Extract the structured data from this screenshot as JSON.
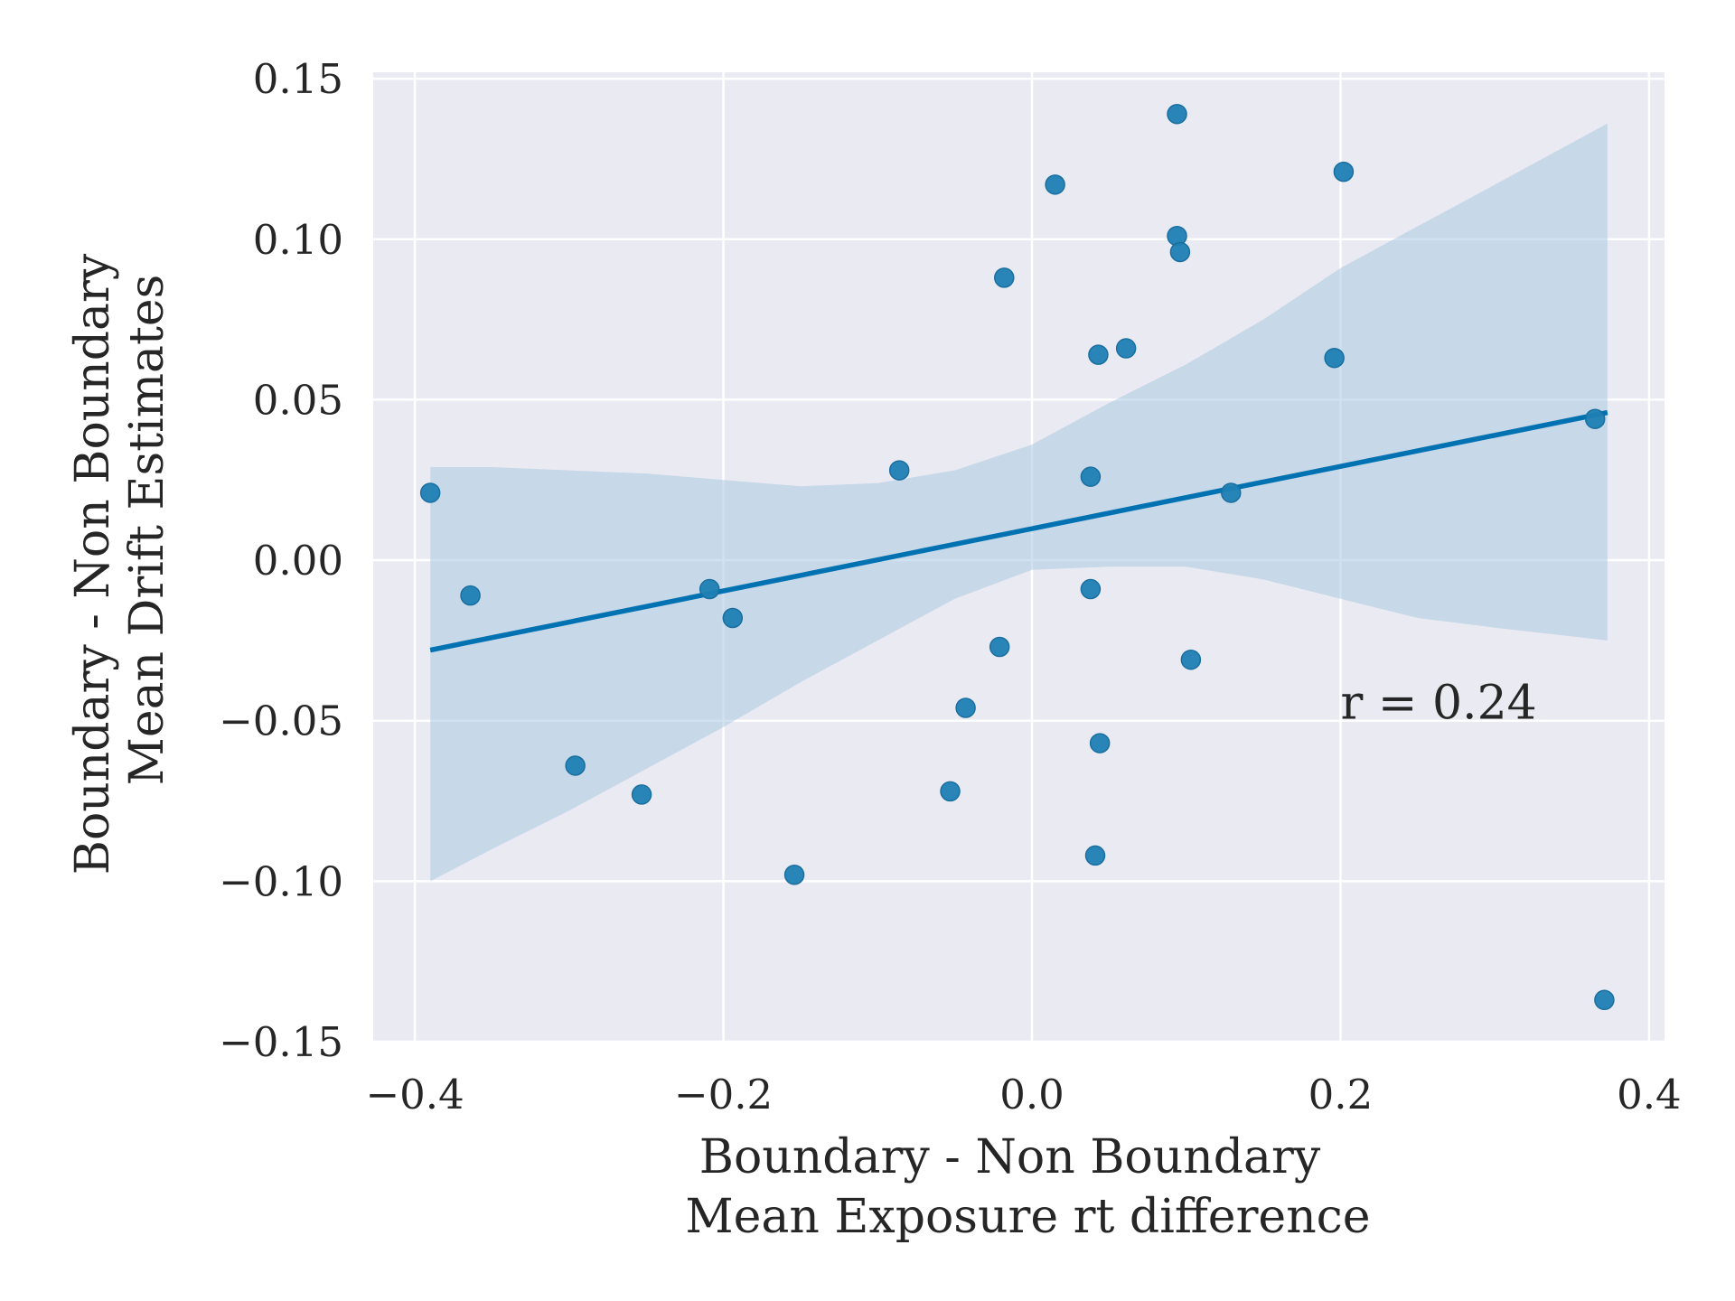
{
  "chart_data": {
    "type": "scatter",
    "xlabel": [
      "Boundary - Non Boundary",
      "Mean Exposure rt difference"
    ],
    "ylabel": [
      "Boundary - Non Boundary",
      "Mean Drift Estimates"
    ],
    "annotation": "r = 0.24",
    "xlim": [
      -0.427,
      0.41
    ],
    "ylim": [
      -0.15,
      0.152
    ],
    "x_ticks": [
      -0.4,
      -0.2,
      0.0,
      0.2,
      0.4
    ],
    "x_tick_labels": [
      "−0.4",
      "−0.2",
      "0.0",
      "0.2",
      "0.4"
    ],
    "y_ticks": [
      -0.15,
      -0.1,
      -0.05,
      0.0,
      0.05,
      0.1,
      0.15
    ],
    "y_tick_labels": [
      "−0.15",
      "−0.10",
      "−0.05",
      "0.00",
      "0.05",
      "0.10",
      "0.15"
    ],
    "grid": true,
    "background": "#eaeaf2",
    "point_color": "#1f7fb4",
    "line_color": "#0072b2",
    "ci_color": "#a9c8e2",
    "points": [
      {
        "x": -0.39,
        "y": 0.021
      },
      {
        "x": -0.364,
        "y": -0.011
      },
      {
        "x": -0.296,
        "y": -0.064
      },
      {
        "x": -0.253,
        "y": -0.073
      },
      {
        "x": -0.209,
        "y": -0.009
      },
      {
        "x": -0.194,
        "y": -0.018
      },
      {
        "x": -0.154,
        "y": -0.098
      },
      {
        "x": -0.086,
        "y": 0.028
      },
      {
        "x": -0.053,
        "y": -0.072
      },
      {
        "x": -0.043,
        "y": -0.046
      },
      {
        "x": -0.021,
        "y": -0.027
      },
      {
        "x": -0.018,
        "y": 0.088
      },
      {
        "x": 0.015,
        "y": 0.117
      },
      {
        "x": 0.038,
        "y": 0.026
      },
      {
        "x": 0.038,
        "y": -0.009
      },
      {
        "x": 0.041,
        "y": -0.092
      },
      {
        "x": 0.043,
        "y": 0.064
      },
      {
        "x": 0.044,
        "y": -0.057
      },
      {
        "x": 0.061,
        "y": 0.066
      },
      {
        "x": 0.094,
        "y": 0.139
      },
      {
        "x": 0.094,
        "y": 0.101
      },
      {
        "x": 0.096,
        "y": 0.096
      },
      {
        "x": 0.103,
        "y": -0.031
      },
      {
        "x": 0.129,
        "y": 0.021
      },
      {
        "x": 0.196,
        "y": 0.063
      },
      {
        "x": 0.202,
        "y": 0.121
      },
      {
        "x": 0.365,
        "y": 0.044
      },
      {
        "x": 0.371,
        "y": -0.137
      }
    ],
    "regression_line": {
      "x": [
        -0.39,
        0.373
      ],
      "y": [
        -0.028,
        0.046
      ]
    },
    "confidence_band": {
      "x": [
        -0.39,
        -0.35,
        -0.3,
        -0.25,
        -0.2,
        -0.15,
        -0.1,
        -0.05,
        0.0,
        0.05,
        0.1,
        0.15,
        0.2,
        0.25,
        0.3,
        0.373
      ],
      "upper": [
        0.029,
        0.029,
        0.028,
        0.027,
        0.025,
        0.023,
        0.024,
        0.028,
        0.036,
        0.049,
        0.061,
        0.075,
        0.091,
        0.104,
        0.117,
        0.136
      ],
      "lower": [
        -0.1,
        -0.09,
        -0.078,
        -0.065,
        -0.052,
        -0.038,
        -0.025,
        -0.012,
        -0.003,
        -0.002,
        -0.002,
        -0.006,
        -0.012,
        -0.018,
        -0.021,
        -0.025
      ]
    }
  }
}
